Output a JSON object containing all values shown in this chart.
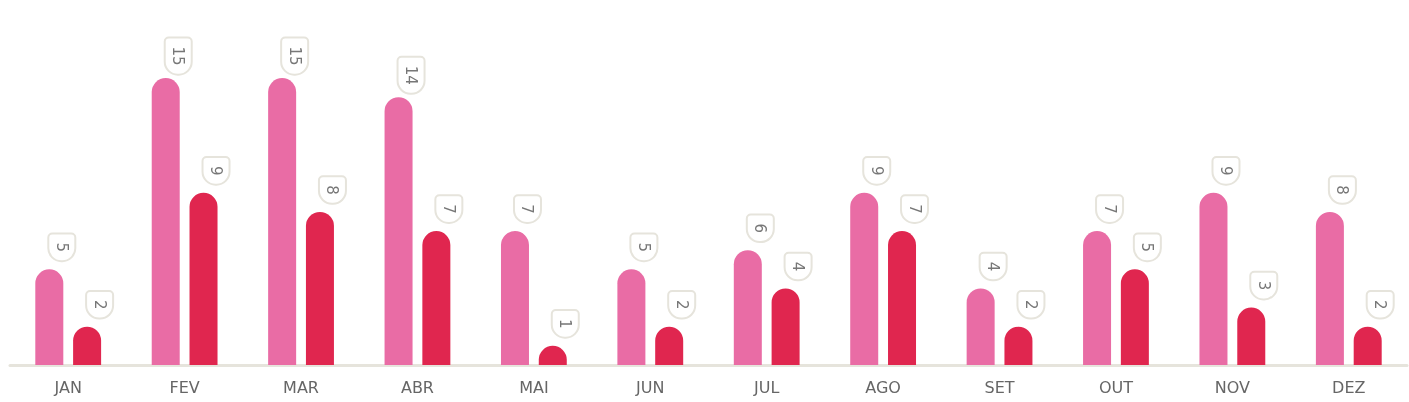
{
  "chart_data": {
    "type": "bar",
    "categories": [
      "JAN",
      "FEV",
      "MAR",
      "ABR",
      "MAI",
      "JUN",
      "JUL",
      "AGO",
      "SET",
      "OUT",
      "NOV",
      "DEZ"
    ],
    "series": [
      {
        "color": "#e96ca5",
        "values": [
          5,
          15,
          15,
          14,
          7,
          5,
          6,
          9,
          4,
          7,
          9,
          8
        ]
      },
      {
        "color": "#e0264f",
        "values": [
          2,
          9,
          8,
          7,
          1,
          2,
          4,
          7,
          2,
          5,
          3,
          2
        ]
      }
    ],
    "data_labels": true,
    "grid": false
  }
}
